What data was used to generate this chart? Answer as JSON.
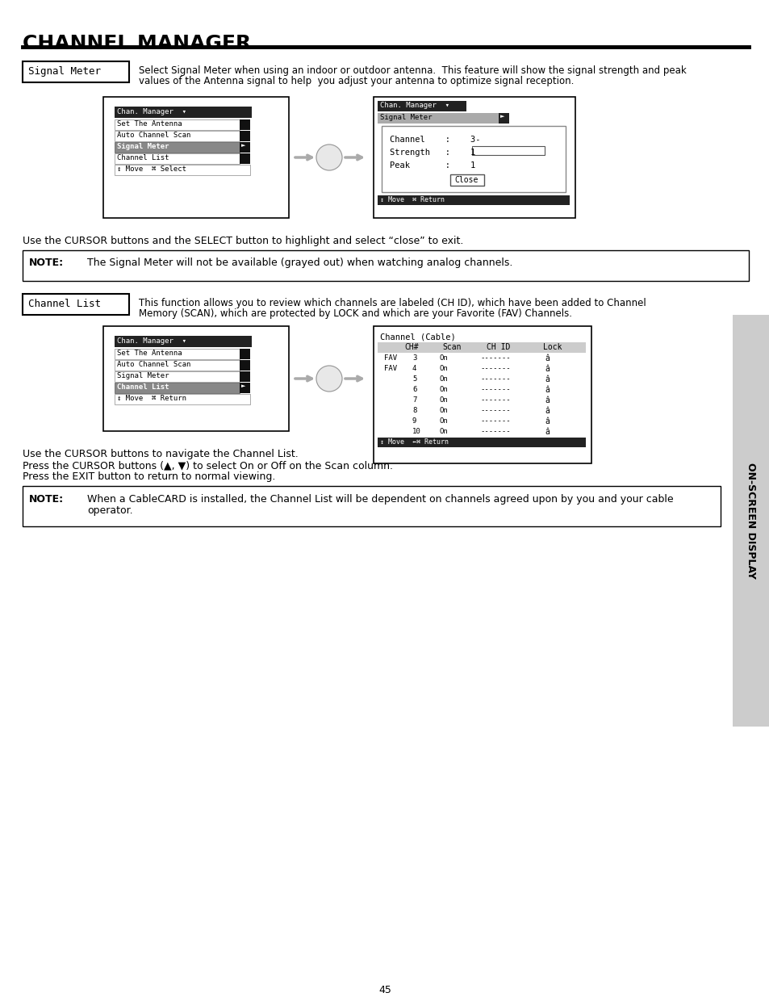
{
  "title": "CHANNEL MANAGER",
  "bg_color": "#ffffff",
  "text_color": "#000000",
  "page_number": "45",
  "signal_meter_label": "Signal Meter",
  "signal_meter_desc1": "Select Signal Meter when using an indoor or outdoor antenna.  This feature will show the signal strength and peak",
  "signal_meter_desc2": "values of the Antenna signal to help  you adjust your antenna to optimize signal reception.",
  "channel_list_label": "Channel List",
  "channel_list_desc1": "This function allows you to review which channels are labeled (CH ID), which have been added to Channel",
  "channel_list_desc2": "Memory (SCAN), which are protected by LOCK and which are your Favorite (FAV) Channels.",
  "cursor_note1": "Use the CURSOR buttons and the SELECT button to highlight and select “close” to exit.",
  "note1_label": "NOTE:",
  "note1_text": "The Signal Meter will not be available (grayed out) when watching analog channels.",
  "cursor_note2a": "Use the CURSOR buttons to navigate the Channel List.",
  "cursor_note2b": "Press the CURSOR buttons (▲, ▼) to select On or Off on the Scan column.",
  "cursor_note2c": "Press the EXIT button to return to normal viewing.",
  "note2_label": "NOTE:",
  "note2_text1": "When a CableCARD is installed, the Channel List will be dependent on channels agreed upon by you and your cable",
  "note2_text2": "operator.",
  "side_label": "ON-SCREEN DISPLAY"
}
